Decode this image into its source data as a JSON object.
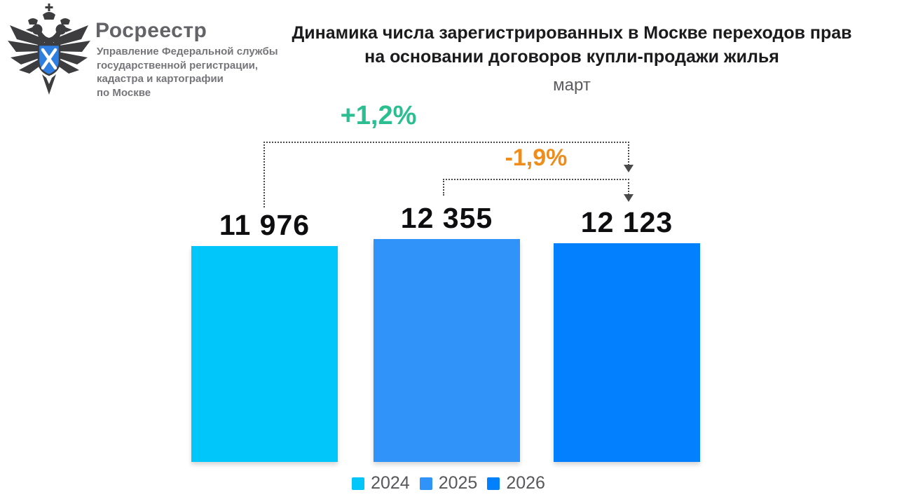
{
  "header": {
    "logo_icon": "rosreestr-double-headed-eagle",
    "brand": "Росреестр",
    "org_lines": [
      "Управление Федеральной службы",
      "государственной регистрации,",
      "кадастра и картографии",
      "по Москве"
    ]
  },
  "title": {
    "line1": "Динамика числа зарегистрированных в Москве переходов прав",
    "line2": "на основании договоров купли-продажи жилья",
    "subtitle": "март"
  },
  "chart_data": {
    "type": "bar",
    "title": "Динамика числа зарегистрированных в Москве переходов прав на основании договоров купли-продажи жилья",
    "subtitle": "март",
    "categories": [
      "2024",
      "2025",
      "2026"
    ],
    "values": [
      11976,
      12355,
      12123
    ],
    "value_labels": [
      "11 976",
      "12 355",
      "12 123"
    ],
    "bar_colors": [
      "#00c6f9",
      "#3093fa",
      "#0380fe"
    ],
    "annotations": [
      {
        "label": "+1,2%",
        "color": "#2abe90",
        "from": "2024",
        "to": "2026",
        "style": "dotted-bracket-arrow"
      },
      {
        "label": "-1,9%",
        "color": "#ee8d1b",
        "from": "2025",
        "to": "2026",
        "style": "dotted-bracket-arrow"
      }
    ],
    "legend": [
      "2024",
      "2025",
      "2026"
    ],
    "legend_position": "bottom",
    "ylim": [
      0,
      12355
    ],
    "grid": false
  }
}
